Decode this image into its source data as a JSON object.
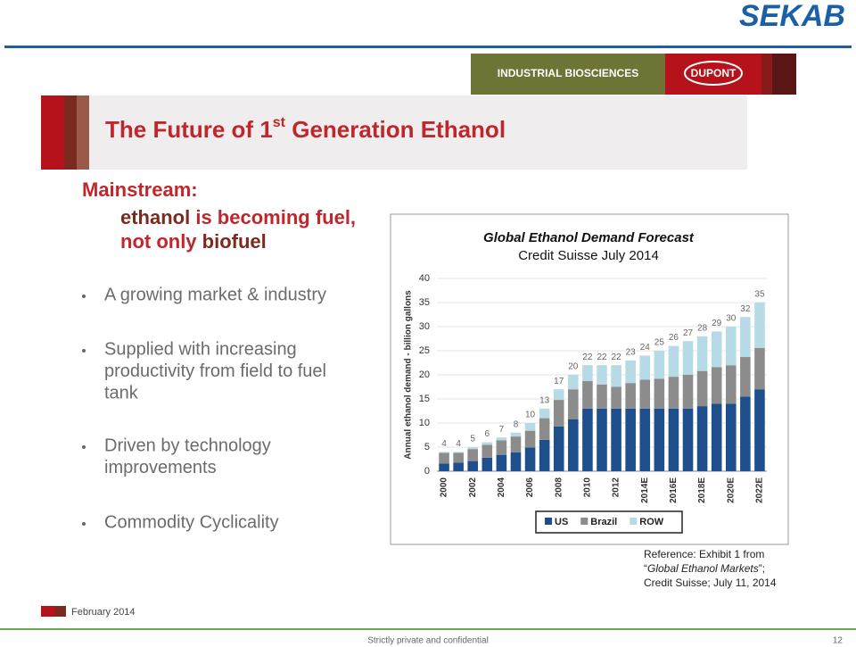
{
  "logo": "SEKAB",
  "banner": {
    "left": "INDUSTRIAL BIOSCIENCES",
    "right": "DUPONT"
  },
  "title": {
    "before": "The Future of 1",
    "sup": "st",
    "after": " Generation Ethanol"
  },
  "heading": "Mainstream:",
  "subheading": {
    "line1": {
      "a": "ethanol",
      "b": " is becoming fuel,"
    },
    "line2": {
      "a": "not only",
      "b": " biofuel"
    }
  },
  "bullets": [
    [
      "A growing market & industry"
    ],
    [
      "Supplied with increasing",
      "productivity from field to fuel",
      "tank"
    ],
    [
      "Driven by technology",
      "improvements"
    ],
    [
      "Commodity Cyclicality"
    ]
  ],
  "chart_data": {
    "type": "stacked_bar",
    "title": "Global Ethanol Demand Forecast",
    "subtitle": "Credit Suisse July 2014",
    "y_label": "Annual ethanol demand - billion gallons",
    "categories": [
      "2000",
      null,
      "2002",
      null,
      "2004",
      null,
      "2006",
      null,
      "2008",
      null,
      "2010",
      null,
      "2012",
      null,
      "2014E",
      null,
      "2016E",
      null,
      "2018E",
      null,
      "2020E",
      null,
      "2022E"
    ],
    "series": [
      {
        "name": "US",
        "color": "#1f4e8c",
        "values": [
          1.6,
          1.8,
          2.1,
          2.8,
          3.4,
          3.9,
          4.9,
          6.5,
          9.3,
          10.8,
          13,
          13,
          13,
          13,
          13,
          13,
          13,
          13,
          13.5,
          14,
          14,
          15.5,
          17
        ]
      },
      {
        "name": "Brazil",
        "color": "#8c8c8c",
        "values": [
          2.2,
          2.0,
          2.5,
          2.7,
          3.0,
          3.3,
          3.5,
          4.5,
          5.5,
          6.2,
          5.7,
          5.0,
          4.5,
          5.3,
          6.0,
          6.2,
          6.6,
          7.0,
          7.3,
          7.6,
          8.0,
          8.2,
          8.6
        ]
      },
      {
        "name": "ROW",
        "color": "#b7dbe6",
        "values": [
          0.2,
          0.2,
          0.4,
          0.5,
          0.6,
          0.8,
          1.6,
          2.0,
          2.2,
          3.0,
          3.3,
          4.0,
          4.5,
          4.7,
          5.0,
          5.8,
          6.4,
          7.0,
          7.2,
          7.4,
          8.0,
          8.3,
          9.4
        ]
      }
    ],
    "totals": [
      4,
      4,
      5,
      6,
      7,
      8,
      10,
      13,
      17,
      20,
      22,
      22,
      22,
      23,
      24,
      25,
      26,
      27,
      28,
      29,
      30,
      32,
      35
    ],
    "ylim": [
      0,
      40
    ],
    "yticks": [
      0,
      5,
      10,
      15,
      20,
      25,
      30,
      35,
      40
    ],
    "grid": true
  },
  "reference": {
    "line1": "Reference: Exhibit 1 from",
    "line2": {
      "open": "“",
      "italic": "Global Ethanol Markets",
      "close": "”;"
    },
    "line3": "Credit Suisse; July 11, 2014"
  },
  "footer": {
    "date": "February 2014",
    "confidential": "Strictly private and confidential",
    "page": "12"
  }
}
